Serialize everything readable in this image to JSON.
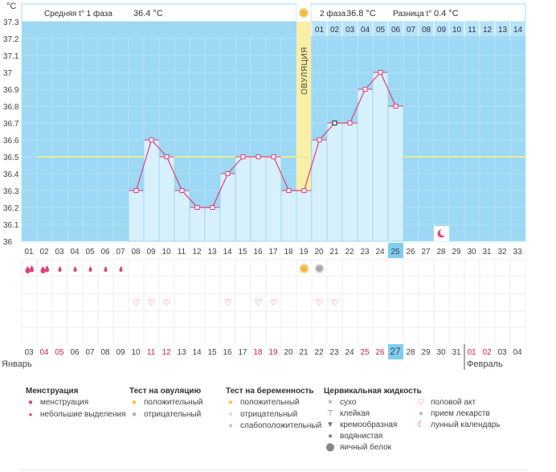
{
  "unit_label": "°C",
  "summary": {
    "phase1_label": "Средняя t° 1 фаза",
    "phase1_value": "36.4 °C",
    "phase2_label": "2 фаза",
    "phase2_value": "36.8 °C",
    "diff_label": "Разница t°",
    "diff_value": "0.4 °C"
  },
  "ovulation_label": "ОВУЛЯЦИЯ",
  "phase2_day_labels": [
    "01",
    "02",
    "03",
    "04",
    "05",
    "06",
    "07",
    "08",
    "09",
    "10",
    "11",
    "12",
    "13",
    "14"
  ],
  "cycle_days": [
    "01",
    "02",
    "03",
    "04",
    "05",
    "06",
    "07",
    "08",
    "09",
    "10",
    "11",
    "12",
    "13",
    "14",
    "15",
    "16",
    "17",
    "18",
    "19",
    "20",
    "21",
    "22",
    "23",
    "24",
    "25",
    "26",
    "27",
    "28",
    "29",
    "30",
    "31",
    "32",
    "33"
  ],
  "current_cycle_day": "25",
  "calendar_days": [
    "03",
    "04",
    "05",
    "06",
    "07",
    "08",
    "09",
    "10",
    "11",
    "12",
    "13",
    "14",
    "15",
    "16",
    "17",
    "18",
    "19",
    "20",
    "21",
    "22",
    "23",
    "24",
    "25",
    "26",
    "27",
    "28",
    "29",
    "30",
    "31",
    "01",
    "02",
    "03",
    "04"
  ],
  "calendar_weekend_days": [
    "04",
    "05",
    "11",
    "12",
    "18",
    "19",
    "25",
    "26",
    "01",
    "02"
  ],
  "current_calendar_day": "27",
  "month_labels": {
    "january": "Январь",
    "february": "Февраль"
  },
  "colors": {
    "chart_bg": "#9dd8f4",
    "bar_fill": "#d6f0fc",
    "bar_stroke": "#9cc9e2",
    "line": "#e0407a",
    "ovulation": "#fbeea6",
    "average_line": "#e8ee9a",
    "highlight": "#7fcdf0",
    "weekend": "#cc2255"
  },
  "chart_data": {
    "type": "line",
    "title": "",
    "xlabel": "",
    "ylabel": "°C",
    "ylim": [
      36.0,
      37.3
    ],
    "yticks": [
      "36",
      "36.1",
      "36.2",
      "36.3",
      "36.4",
      "36.5",
      "36.6",
      "36.7",
      "36.8",
      "36.9",
      "37",
      "37.1",
      "37.2",
      "37.3"
    ],
    "grid": true,
    "ovulation_day": 19,
    "average_line_value": 36.5,
    "series": [
      {
        "x": [
          8,
          9,
          10,
          11,
          12,
          13,
          14,
          15,
          16,
          17,
          18,
          19,
          20,
          21,
          22,
          23,
          24,
          25
        ],
        "y": [
          36.3,
          36.6,
          36.5,
          36.3,
          36.2,
          36.2,
          36.4,
          36.5,
          36.5,
          36.5,
          36.3,
          36.3,
          36.6,
          36.7,
          36.7,
          36.9,
          37.0,
          36.8
        ],
        "marked_point_day": 21
      }
    ],
    "lunar_day": 28
  },
  "event_rows": {
    "menstruation": {
      "days": [
        1,
        2,
        3,
        4,
        5,
        6,
        7
      ],
      "heavy_days": [
        1,
        2
      ]
    },
    "ovulation_test": {
      "positive": [
        19
      ],
      "negative": [
        20
      ]
    },
    "intercourse": {
      "days": [
        8,
        9,
        10,
        14,
        16,
        17,
        20,
        21
      ]
    }
  },
  "legend": {
    "menstruation": {
      "title": "Менструация",
      "items": [
        "менструация",
        "небольшие выделения"
      ]
    },
    "ovulation_test": {
      "title": "Тест на овуляцию",
      "items": [
        "положительный",
        "отрицательный"
      ]
    },
    "pregnancy_test": {
      "title": "Тест на беременность",
      "items": [
        "положительный",
        "отрицательный",
        "слабоположительный"
      ]
    },
    "cervical_fluid": {
      "title": "Цервикальная жидкость",
      "items": [
        "сухо",
        "клейкая",
        "кремообразная",
        "водянистая",
        "яичный белок"
      ]
    },
    "other": {
      "items": [
        "половой акт",
        "прием лекарств",
        "лунный календарь"
      ]
    }
  }
}
